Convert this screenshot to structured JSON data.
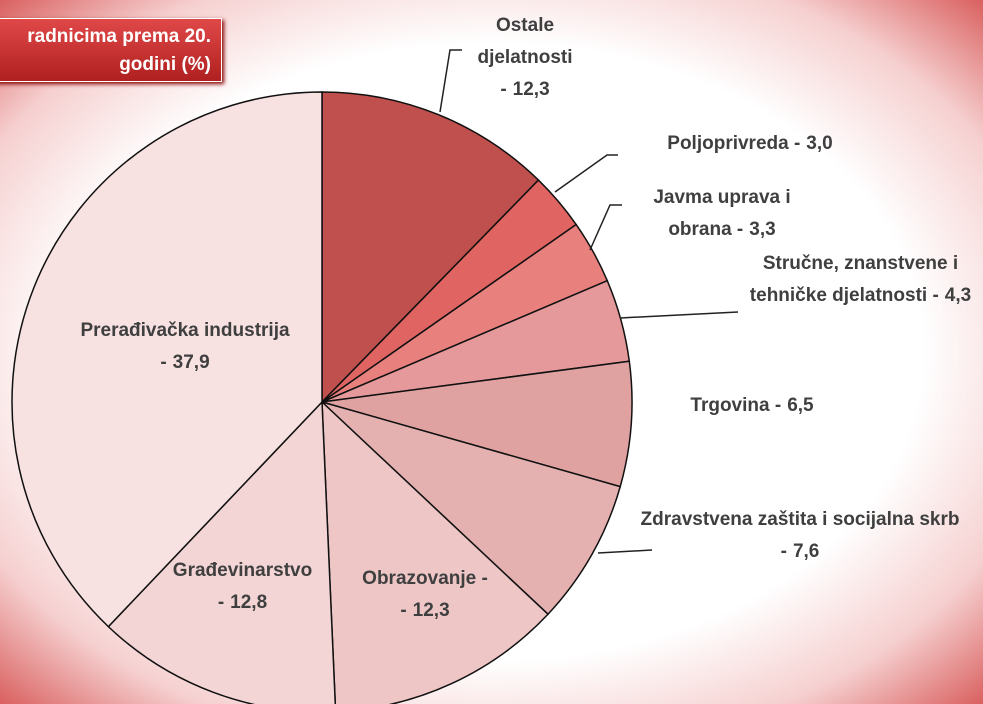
{
  "chart_data": {
    "type": "pie",
    "title": "radnicima prema 20. godini (%)",
    "categories": [
      "Ostale djelatnosti -",
      "Poljoprivreda -",
      "Javma uprava i obrana -",
      "Stručne, znanstvene i tehničke djelatnosti -",
      "Trgovina -",
      "Zdravstvena zaštita i socijalna skrb -",
      "Obrazovanje - -",
      "Građevinarstvo -",
      "Prerađivačka industrija -"
    ],
    "values": [
      12.3,
      3.0,
      3.3,
      4.3,
      6.5,
      7.6,
      12.3,
      12.8,
      37.9
    ],
    "value_labels": [
      "12,3",
      "3,0",
      "3,3",
      "4,3",
      "6,5",
      "7,6",
      "12,3",
      "12,8",
      "37,9"
    ],
    "colors": [
      "#c0504d",
      "#e06562",
      "#e8807d",
      "#e5999a",
      "#e0a2a1",
      "#e4b1b0",
      "#edc6c5",
      "#f2d5d4",
      "#f7e1e1"
    ]
  }
}
